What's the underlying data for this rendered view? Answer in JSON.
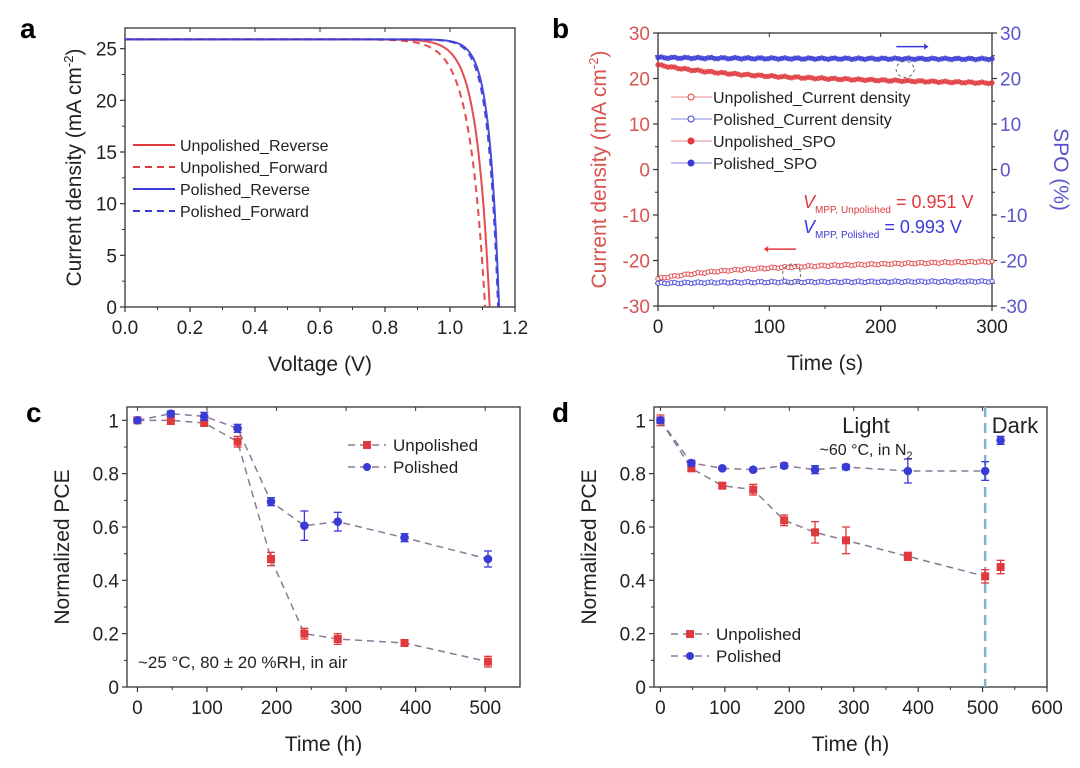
{
  "colors": {
    "red": "#e0393e",
    "blue": "#3a3ad6",
    "axis": "#333333",
    "red_axis_text": "#d9534f",
    "blue_axis_text": "#5a55c8",
    "connector": "#8a7a96",
    "divider": "#7fb3d5"
  },
  "chart_data": [
    {
      "panel": "a",
      "type": "line",
      "xlabel": "Voltage (V)",
      "ylabel": "Current density (mA cm",
      "ylabel_sup": "-2",
      "ylabel_end": ")",
      "xlim": [
        0,
        1.2
      ],
      "ylim": [
        0,
        27
      ],
      "xticks": [
        "0.0",
        "0.2",
        "0.4",
        "0.6",
        "0.8",
        "1.0",
        "1.2"
      ],
      "xtick_values": [
        0,
        0.2,
        0.4,
        0.6,
        0.8,
        1.0,
        1.2
      ],
      "yticks": [
        "0",
        "5",
        "10",
        "15",
        "20",
        "25"
      ],
      "ytick_values": [
        0,
        5,
        10,
        15,
        20,
        25
      ],
      "legend_position": "center-left",
      "series": [
        {
          "name": "Unpolished_Reverse",
          "color": "red",
          "dash": false,
          "jsc": 25.9,
          "voc": 1.122,
          "knee": 0.04
        },
        {
          "name": "Unpolished_Forward",
          "color": "red",
          "dash": true,
          "jsc": 25.9,
          "voc": 1.108,
          "knee": 0.048
        },
        {
          "name": "Polished_Reverse",
          "color": "blue",
          "dash": false,
          "jsc": 25.9,
          "voc": 1.151,
          "knee": 0.03
        },
        {
          "name": "Polished_Forward",
          "color": "blue",
          "dash": true,
          "jsc": 25.9,
          "voc": 1.148,
          "knee": 0.031
        }
      ]
    },
    {
      "panel": "b",
      "type": "scatter",
      "xlabel": "Time (s)",
      "ylabel_left": "Current density (mA cm",
      "ylabel_left_sup": "-2",
      "ylabel_left_end": ")",
      "ylabel_right": "SPO (%)",
      "xlim": [
        0,
        300
      ],
      "ylim": [
        -30,
        30
      ],
      "ylim_right": [
        -30,
        30
      ],
      "xticks": [
        "0",
        "100",
        "200",
        "300"
      ],
      "xtick_values": [
        0,
        100,
        200,
        300
      ],
      "yticks": [
        "-30",
        "-20",
        "-10",
        "0",
        "10",
        "20",
        "30"
      ],
      "ytick_values": [
        -30,
        -20,
        -10,
        0,
        10,
        20,
        30
      ],
      "legend_position": "upper-left",
      "series": [
        {
          "name": "Unpolished_Current density",
          "color": "red",
          "marker": "open-circle",
          "axis": "left",
          "start": -24.0,
          "end": -20.2
        },
        {
          "name": "Polished_Current density",
          "color": "blue",
          "marker": "open-circle",
          "axis": "left",
          "start": -25.0,
          "end": -24.6
        },
        {
          "name": "Unpolished_SPO",
          "color": "red",
          "marker": "filled-circle",
          "axis": "right",
          "start": 23.0,
          "end": 19.0
        },
        {
          "name": "Polished_SPO",
          "color": "blue",
          "marker": "filled-circle",
          "axis": "right",
          "start": 24.6,
          "end": 24.3
        }
      ],
      "annotations": [
        {
          "text": "V",
          "sub": "MPP, Unpolished",
          "value": " = 0.951 V",
          "color": "red"
        },
        {
          "text": "V",
          "sub": "MPP, Polished",
          "value": " = 0.993 V",
          "color": "blue"
        }
      ]
    },
    {
      "panel": "c",
      "type": "line",
      "xlabel": "Time (h)",
      "ylabel": "Normalized PCE",
      "xlim": [
        -15,
        550
      ],
      "ylim": [
        0,
        1.05
      ],
      "xticks": [
        "0",
        "100",
        "200",
        "300",
        "400",
        "500"
      ],
      "xtick_values": [
        0,
        100,
        200,
        300,
        400,
        500
      ],
      "yticks": [
        "0",
        "0.2",
        "0.4",
        "0.6",
        "0.8",
        "1"
      ],
      "ytick_values": [
        0,
        0.2,
        0.4,
        0.6,
        0.8,
        1
      ],
      "legend_position": "upper-right",
      "annotation": "~25 °C, 80 ± 20 %RH, in air",
      "series": [
        {
          "name": "Unpolished",
          "color": "red",
          "marker": "square",
          "x": [
            0,
            48,
            96,
            144,
            192,
            240,
            288,
            384,
            504
          ],
          "y": [
            1.0,
            1.0,
            0.99,
            0.92,
            0.48,
            0.2,
            0.18,
            0.165,
            0.095
          ],
          "err": [
            0.005,
            0.015,
            0.01,
            0.02,
            0.025,
            0.02,
            0.02,
            0.01,
            0.02
          ]
        },
        {
          "name": "Polished",
          "color": "blue",
          "marker": "circle",
          "x": [
            0,
            48,
            96,
            144,
            192,
            240,
            288,
            384,
            504
          ],
          "y": [
            1.0,
            1.025,
            1.015,
            0.97,
            0.695,
            0.605,
            0.62,
            0.56,
            0.48
          ],
          "err": [
            0.005,
            0.01,
            0.015,
            0.015,
            0.015,
            0.055,
            0.035,
            0.015,
            0.03
          ]
        }
      ]
    },
    {
      "panel": "d",
      "type": "line",
      "xlabel": "Time (h)",
      "ylabel": "Normalized PCE",
      "xlim": [
        -10,
        600
      ],
      "ylim": [
        0,
        1.05
      ],
      "xticks": [
        "0",
        "100",
        "200",
        "300",
        "400",
        "500",
        "600"
      ],
      "xtick_values": [
        0,
        100,
        200,
        300,
        400,
        500,
        600
      ],
      "yticks": [
        "0",
        "0.2",
        "0.4",
        "0.6",
        "0.8",
        "1"
      ],
      "ytick_values": [
        0,
        0.2,
        0.4,
        0.6,
        0.8,
        1
      ],
      "legend_position": "lower-left",
      "region_labels": {
        "light": "Light",
        "dark": "Dark",
        "condition": "~60 °C, in N",
        "condition_sub": "2"
      },
      "divider_x": 504,
      "series": [
        {
          "name": "Unpolished",
          "color": "red",
          "marker": "square",
          "x": [
            0,
            48,
            96,
            144,
            192,
            240,
            288,
            384,
            504
          ],
          "y": [
            1.0,
            0.82,
            0.755,
            0.74,
            0.625,
            0.58,
            0.55,
            0.49,
            0.415
          ],
          "err": [
            0.02,
            0.01,
            0.01,
            0.02,
            0.02,
            0.04,
            0.05,
            0.015,
            0.025
          ],
          "dark_x": 528,
          "dark_y": 0.45,
          "dark_err": 0.025
        },
        {
          "name": "Polished",
          "color": "blue",
          "marker": "circle",
          "x": [
            0,
            48,
            96,
            144,
            192,
            240,
            288,
            384,
            504
          ],
          "y": [
            1.0,
            0.84,
            0.82,
            0.815,
            0.83,
            0.815,
            0.825,
            0.81,
            0.81
          ],
          "err": [
            0.01,
            0.01,
            0.005,
            0.005,
            0.01,
            0.015,
            0.01,
            0.045,
            0.035
          ],
          "dark_x": 528,
          "dark_y": 0.925,
          "dark_err": 0.015
        }
      ]
    }
  ]
}
